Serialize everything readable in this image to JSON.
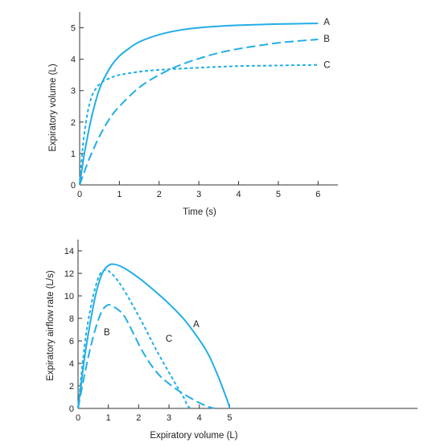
{
  "colors": {
    "curve": "#22aee6",
    "axis": "#333333",
    "text": "#222222"
  },
  "chart_data": [
    {
      "type": "line",
      "title": "",
      "xlabel": "Time (s)",
      "ylabel": "Expiratory volume (L)",
      "xlim": [
        0,
        6.5
      ],
      "ylim": [
        0,
        5.5
      ],
      "x_ticks": [
        "0",
        "1",
        "2",
        "3",
        "4",
        "5",
        "6"
      ],
      "y_ticks": [
        "0",
        "1",
        "2",
        "3",
        "4",
        "5"
      ],
      "grid": false,
      "legend": "labels at curve ends",
      "series": [
        {
          "name": "A",
          "line_style": "solid",
          "x": [
            0,
            0.1,
            0.2,
            0.3,
            0.4,
            0.5,
            0.6,
            0.8,
            1.0,
            1.25,
            1.5,
            2.0,
            2.5,
            3.0,
            3.5,
            4.0,
            4.5,
            5.0,
            5.5,
            6.0
          ],
          "y": [
            0,
            0.85,
            1.55,
            2.15,
            2.65,
            3.05,
            3.35,
            3.8,
            4.1,
            4.35,
            4.55,
            4.78,
            4.92,
            5.0,
            5.05,
            5.08,
            5.1,
            5.12,
            5.13,
            5.14
          ]
        },
        {
          "name": "B",
          "line_style": "dashed",
          "x": [
            0,
            0.1,
            0.2,
            0.3,
            0.5,
            0.75,
            1.0,
            1.5,
            2.0,
            2.5,
            3.0,
            3.5,
            4.0,
            4.5,
            5.0,
            5.5,
            6.0
          ],
          "y": [
            0,
            0.35,
            0.7,
            1.0,
            1.55,
            2.1,
            2.5,
            3.1,
            3.5,
            3.8,
            4.02,
            4.2,
            4.33,
            4.43,
            4.52,
            4.58,
            4.63
          ]
        },
        {
          "name": "C",
          "line_style": "dotted",
          "x": [
            0,
            0.05,
            0.1,
            0.2,
            0.3,
            0.4,
            0.5,
            0.6,
            0.8,
            1.0,
            1.5,
            2.0,
            3.0,
            4.0,
            5.0,
            6.0
          ],
          "y": [
            0,
            0.8,
            1.45,
            2.3,
            2.8,
            3.05,
            3.2,
            3.3,
            3.42,
            3.5,
            3.6,
            3.66,
            3.73,
            3.78,
            3.8,
            3.82
          ]
        }
      ]
    },
    {
      "type": "line",
      "title": "",
      "xlabel": "Expiratory volume (L)",
      "ylabel": "Expiratory airflow rate (L/s)",
      "xlim": [
        0,
        11.2
      ],
      "ylim": [
        0,
        15
      ],
      "x_ticks": [
        "0",
        "1",
        "2",
        "3",
        "4",
        "5"
      ],
      "y_ticks": [
        "0",
        "2",
        "4",
        "6",
        "8",
        "10",
        "12",
        "14"
      ],
      "grid": false,
      "legend": "labels next to curves",
      "series": [
        {
          "name": "A",
          "line_style": "solid",
          "x": [
            0,
            0.2,
            0.4,
            0.6,
            0.8,
            1.0,
            1.2,
            1.5,
            2.0,
            2.5,
            3.0,
            3.5,
            4.0,
            4.3,
            4.6,
            4.8,
            4.95,
            5.0
          ],
          "y": [
            0,
            4.2,
            7.6,
            10.3,
            12.0,
            12.7,
            12.8,
            12.5,
            11.6,
            10.5,
            9.3,
            7.9,
            6.1,
            4.8,
            3.0,
            1.6,
            0.5,
            0
          ]
        },
        {
          "name": "B",
          "line_style": "dashed",
          "x": [
            0,
            0.2,
            0.4,
            0.6,
            0.8,
            1.0,
            1.2,
            1.5,
            1.8,
            2.1,
            2.4,
            2.7,
            3.0,
            3.3,
            3.6,
            4.0,
            4.3,
            4.5
          ],
          "y": [
            0,
            2.8,
            5.3,
            7.3,
            8.7,
            9.2,
            9.0,
            8.3,
            6.8,
            5.2,
            3.9,
            2.9,
            2.2,
            1.6,
            1.1,
            0.5,
            0.15,
            0
          ]
        },
        {
          "name": "C",
          "line_style": "dotted",
          "x": [
            0,
            0.15,
            0.3,
            0.5,
            0.7,
            0.9,
            1.1,
            1.4,
            1.8,
            2.2,
            2.6,
            3.0,
            3.3,
            3.5,
            3.6,
            3.7
          ],
          "y": [
            0,
            4.0,
            7.2,
            10.0,
            11.8,
            12.3,
            12.0,
            11.0,
            9.2,
            7.2,
            5.1,
            3.2,
            1.8,
            0.9,
            0.3,
            0
          ]
        }
      ]
    }
  ]
}
